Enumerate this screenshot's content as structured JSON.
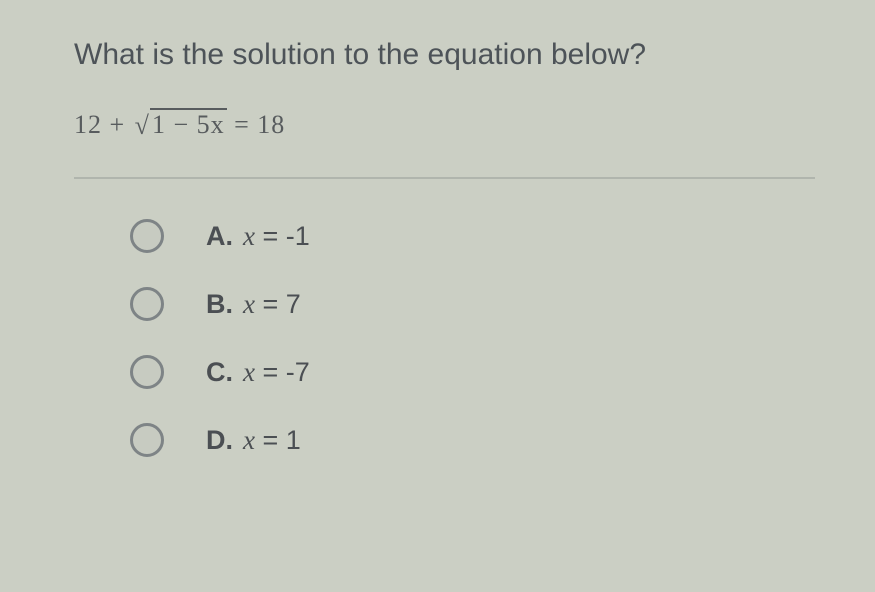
{
  "question": {
    "title": "What is the solution to the equation below?",
    "equation_prefix": "12 +",
    "equation_radicand": "1 − 5x",
    "equation_suffix": "= 18"
  },
  "options": [
    {
      "letter": "A.",
      "var": "x",
      "eq": " = -1"
    },
    {
      "letter": "B.",
      "var": "x",
      "eq": " = 7"
    },
    {
      "letter": "C.",
      "var": "x",
      "eq": " = -7"
    },
    {
      "letter": "D.",
      "var": "x",
      "eq": " = 1"
    }
  ],
  "style": {
    "background": "#cbcfc4",
    "title_color": "#4d5358",
    "text_color": "#4b4f53",
    "radio_border": "#7e8486",
    "divider_color": "#9aa09a",
    "title_fontsize": 30,
    "equation_fontsize": 26,
    "option_fontsize": 27,
    "radio_size": 34
  }
}
